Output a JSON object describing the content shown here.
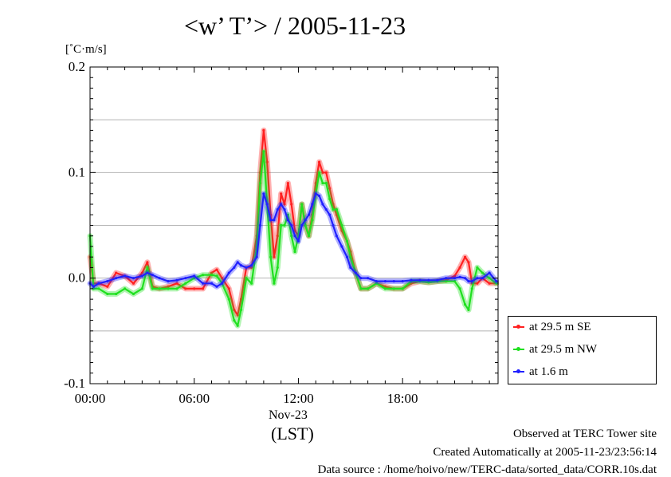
{
  "chart_data": {
    "type": "line",
    "title": "<w’ T’> / 2005-11-23",
    "ylabel": "[˚C·m/s]",
    "xlabel": "(LST)",
    "x_date_label": "Nov-23",
    "x_ticks": [
      "00:00",
      "06:00",
      "12:00",
      "18:00"
    ],
    "y_ticks": [
      "-0.1",
      "0.0",
      "0.1",
      "0.2"
    ],
    "ylim": [
      -0.1,
      0.2
    ],
    "xlim_hours": [
      0,
      23.5
    ],
    "grid": true,
    "legend_position": "bottom-right",
    "series": [
      {
        "name": "at 29.5 m SE",
        "color": "#ff2020",
        "x": [
          0,
          0.2,
          0.5,
          1,
          1.5,
          2,
          2.5,
          3,
          3.3,
          3.6,
          4,
          4.5,
          5,
          5.5,
          6,
          6.5,
          7,
          7.3,
          7.6,
          8,
          8.3,
          8.5,
          8.7,
          9,
          9.3,
          9.6,
          9.8,
          10,
          10.2,
          10.4,
          10.6,
          10.8,
          11,
          11.2,
          11.4,
          11.6,
          11.8,
          12,
          12.2,
          12.4,
          12.6,
          12.8,
          13,
          13.2,
          13.4,
          13.6,
          13.8,
          14,
          14.2,
          14.5,
          14.8,
          15,
          15.3,
          15.6,
          16,
          16.5,
          17,
          17.5,
          18,
          18.5,
          19,
          19.5,
          20,
          20.5,
          21,
          21.3,
          21.6,
          21.8,
          22,
          22.3,
          22.6,
          23,
          23.4
        ],
        "y": [
          0.02,
          -0.005,
          -0.005,
          -0.008,
          0.005,
          0.002,
          -0.005,
          0.005,
          0.015,
          -0.008,
          -0.01,
          -0.008,
          -0.005,
          -0.01,
          -0.01,
          -0.01,
          0.005,
          0.008,
          0,
          -0.01,
          -0.03,
          -0.035,
          -0.02,
          0.01,
          0.01,
          0.04,
          0.1,
          0.14,
          0.11,
          0.06,
          0.02,
          0.04,
          0.08,
          0.07,
          0.09,
          0.07,
          0.045,
          0.04,
          0.07,
          0.05,
          0.04,
          0.06,
          0.09,
          0.11,
          0.1,
          0.1,
          0.085,
          0.07,
          0.06,
          0.045,
          0.035,
          0.025,
          0.005,
          -0.01,
          -0.01,
          -0.005,
          -0.008,
          -0.01,
          -0.01,
          -0.005,
          -0.003,
          -0.004,
          -0.003,
          -0.002,
          0.002,
          0.01,
          0.02,
          0.015,
          -0.005,
          -0.005,
          0,
          -0.005,
          -0.005
        ]
      },
      {
        "name": "at 29.5 m NW",
        "color": "#20e020",
        "x": [
          0,
          0.2,
          0.5,
          1,
          1.5,
          2,
          2.5,
          3,
          3.3,
          3.6,
          4,
          4.5,
          5,
          5.5,
          6,
          6.5,
          7,
          7.3,
          7.6,
          8,
          8.3,
          8.5,
          8.7,
          9,
          9.3,
          9.6,
          9.8,
          10,
          10.2,
          10.4,
          10.6,
          10.8,
          11,
          11.2,
          11.4,
          11.6,
          11.8,
          12,
          12.2,
          12.4,
          12.6,
          12.8,
          13,
          13.2,
          13.4,
          13.6,
          13.8,
          14,
          14.2,
          14.5,
          14.8,
          15,
          15.3,
          15.6,
          16,
          16.5,
          17,
          17.5,
          18,
          18.5,
          19,
          19.5,
          20,
          20.5,
          21,
          21.3,
          21.6,
          21.8,
          22,
          22.3,
          22.6,
          23,
          23.4
        ],
        "y": [
          0.04,
          -0.01,
          -0.01,
          -0.015,
          -0.015,
          -0.01,
          -0.015,
          -0.01,
          0.01,
          -0.01,
          -0.01,
          -0.01,
          -0.01,
          -0.005,
          0,
          0.003,
          0.003,
          0.002,
          -0.005,
          -0.02,
          -0.04,
          -0.045,
          -0.03,
          0,
          -0.005,
          0.03,
          0.09,
          0.12,
          0.07,
          0.02,
          -0.005,
          0.01,
          0.05,
          0.05,
          0.06,
          0.04,
          0.025,
          0.04,
          0.07,
          0.05,
          0.04,
          0.055,
          0.08,
          0.1,
          0.09,
          0.09,
          0.075,
          0.065,
          0.065,
          0.05,
          0.035,
          0.02,
          0.005,
          -0.01,
          -0.01,
          -0.005,
          -0.01,
          -0.01,
          -0.01,
          -0.003,
          -0.003,
          -0.004,
          -0.003,
          -0.003,
          -0.003,
          -0.01,
          -0.025,
          -0.03,
          -0.01,
          0.01,
          0.005,
          0,
          -0.005
        ]
      },
      {
        "name": "at 1.6 m",
        "color": "#2020ff",
        "x": [
          0,
          0.2,
          0.5,
          1,
          1.5,
          2,
          2.5,
          3,
          3.3,
          3.6,
          4,
          4.5,
          5,
          5.5,
          6,
          6.5,
          7,
          7.3,
          7.6,
          8,
          8.3,
          8.5,
          8.7,
          9,
          9.3,
          9.6,
          9.8,
          10,
          10.2,
          10.4,
          10.6,
          10.8,
          11,
          11.2,
          11.4,
          11.6,
          11.8,
          12,
          12.2,
          12.4,
          12.6,
          12.8,
          13,
          13.2,
          13.4,
          13.6,
          13.8,
          14,
          14.2,
          14.5,
          14.8,
          15,
          15.3,
          15.6,
          16,
          16.5,
          17,
          17.5,
          18,
          18.5,
          19,
          19.5,
          20,
          20.5,
          21,
          21.3,
          21.6,
          21.8,
          22,
          22.3,
          22.6,
          23,
          23.4
        ],
        "y": [
          -0.005,
          -0.008,
          -0.005,
          -0.003,
          0,
          0.002,
          0,
          0.002,
          0.005,
          0.003,
          0,
          -0.003,
          -0.002,
          0,
          0.002,
          -0.005,
          -0.005,
          -0.008,
          -0.005,
          0.005,
          0.01,
          0.015,
          0.012,
          0.01,
          0.012,
          0.02,
          0.05,
          0.08,
          0.07,
          0.055,
          0.055,
          0.065,
          0.07,
          0.065,
          0.055,
          0.05,
          0.04,
          0.035,
          0.05,
          0.055,
          0.06,
          0.07,
          0.08,
          0.078,
          0.07,
          0.065,
          0.06,
          0.05,
          0.04,
          0.03,
          0.02,
          0.01,
          0.005,
          0,
          0,
          -0.003,
          -0.003,
          -0.003,
          -0.003,
          -0.002,
          -0.002,
          -0.002,
          -0.002,
          0,
          0,
          0.001,
          0,
          -0.003,
          -0.003,
          0,
          0,
          0.005,
          -0.003
        ]
      }
    ]
  },
  "footer": {
    "line1": "Observed at TERC Tower site",
    "line2": "Created Automatically at 2005-11-23/23:56:14",
    "line3": "Data source : /home/hoivo/new/TERC-data/sorted_data/CORR.10s.dat"
  }
}
